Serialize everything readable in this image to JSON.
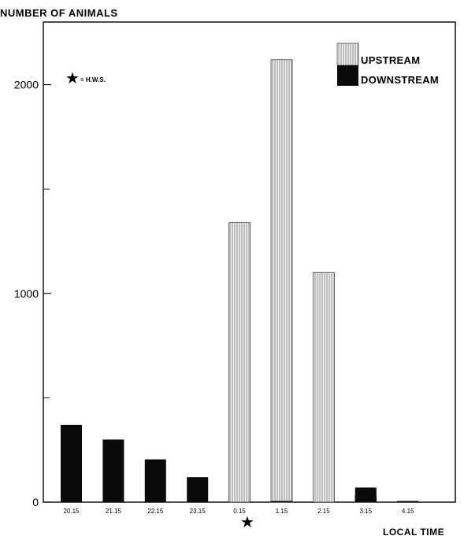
{
  "chart_data": {
    "type": "bar",
    "title": "",
    "ylabel": "NUMBER OF ANIMALS",
    "xlabel": "LOCAL TIME",
    "ylim": [
      0,
      2300
    ],
    "yticks": [
      0,
      1000,
      2000
    ],
    "categories": [
      "20.15",
      "21.15",
      "22.15",
      "23.15",
      "0.15",
      "1.15",
      "2.15",
      "3.15",
      "4.15"
    ],
    "series": [
      {
        "name": "UPSTREAM",
        "values": [
          0,
          0,
          0,
          0,
          1340,
          2120,
          1100,
          30,
          0
        ],
        "color": "#d8d8d8"
      },
      {
        "name": "DOWNSTREAM",
        "values": [
          370,
          300,
          205,
          120,
          0,
          5,
          0,
          70,
          5
        ],
        "color": "#0a0a0a"
      }
    ],
    "legend": {
      "position": "top-right"
    },
    "annotation": {
      "symbol": "★",
      "text": "= H.W.S.",
      "marked_category": "0.15"
    },
    "grid": false
  }
}
